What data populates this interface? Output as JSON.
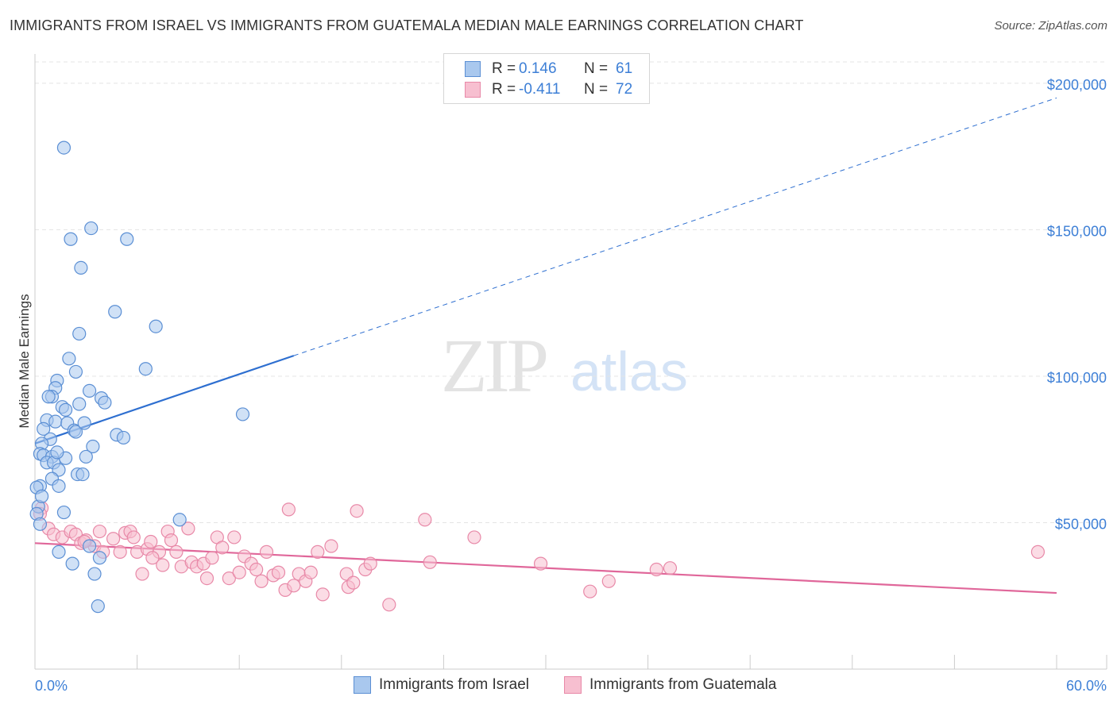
{
  "title": "IMMIGRANTS FROM ISRAEL VS IMMIGRANTS FROM GUATEMALA MEDIAN MALE EARNINGS CORRELATION CHART",
  "source": "Source: ZipAtlas.com",
  "watermark": {
    "zip": "ZIP",
    "atlas": "atlas"
  },
  "legend": {
    "rows": [
      {
        "r_label": "R =",
        "r_value": "0.146",
        "n_label": "N =",
        "n_value": "61"
      },
      {
        "r_label": "R =",
        "r_value": "-0.411",
        "n_label": "N =",
        "n_value": "72"
      }
    ]
  },
  "colors": {
    "israel_fill": "#a9c8ee",
    "israel_stroke": "#5b8fd4",
    "israel_line": "#2e6fd0",
    "guatemala_fill": "#f7bfd0",
    "guatemala_stroke": "#e889a8",
    "guatemala_line": "#e0679a",
    "tick": "#3d7fd6",
    "grid": "#e4e4e4"
  },
  "chart_data": {
    "type": "scatter",
    "title": "IMMIGRANTS FROM ISRAEL VS IMMIGRANTS FROM GUATEMALA MEDIAN MALE EARNINGS CORRELATION CHART",
    "xlabel": "",
    "ylabel": "Median Male Earnings",
    "xlim": [
      0,
      60
    ],
    "ylim": [
      0,
      210000
    ],
    "x_tick_labels": [
      "0.0%",
      "60.0%"
    ],
    "y_ticks": [
      {
        "value": 50000,
        "label": "$50,000"
      },
      {
        "value": 100000,
        "label": "$100,000"
      },
      {
        "value": 150000,
        "label": "$150,000"
      },
      {
        "value": 200000,
        "label": "$200,000"
      }
    ],
    "series": [
      {
        "name": "Immigrants from Israel",
        "r": 0.146,
        "n": 61,
        "trend": {
          "x_start": 0,
          "y_start": 77000,
          "x_solid_end": 15.2,
          "y_solid_end": 107000,
          "x_end": 60,
          "y_end": 195000
        },
        "points": [
          [
            1.7,
            178000
          ],
          [
            3.3,
            150500
          ],
          [
            2.1,
            146800
          ],
          [
            5.4,
            146800
          ],
          [
            2.7,
            137000
          ],
          [
            4.7,
            122000
          ],
          [
            7.1,
            117000
          ],
          [
            2.6,
            114500
          ],
          [
            2.0,
            106000
          ],
          [
            2.4,
            101500
          ],
          [
            6.5,
            102500
          ],
          [
            1.3,
            98500
          ],
          [
            1.2,
            96000
          ],
          [
            3.2,
            95000
          ],
          [
            1.0,
            93000
          ],
          [
            0.8,
            93000
          ],
          [
            3.9,
            92500
          ],
          [
            4.1,
            91000
          ],
          [
            2.6,
            90500
          ],
          [
            1.6,
            89500
          ],
          [
            1.8,
            88500
          ],
          [
            12.2,
            87000
          ],
          [
            0.7,
            85000
          ],
          [
            1.2,
            84500
          ],
          [
            1.9,
            84000
          ],
          [
            0.5,
            82000
          ],
          [
            2.3,
            81500
          ],
          [
            2.4,
            81000
          ],
          [
            4.8,
            80000
          ],
          [
            5.2,
            79000
          ],
          [
            0.9,
            78500
          ],
          [
            0.4,
            77000
          ],
          [
            3.4,
            76000
          ],
          [
            0.3,
            73500
          ],
          [
            0.5,
            73000
          ],
          [
            1.0,
            72500
          ],
          [
            3.0,
            72500
          ],
          [
            1.8,
            72000
          ],
          [
            0.7,
            70500
          ],
          [
            1.1,
            70500
          ],
          [
            1.4,
            68000
          ],
          [
            2.5,
            66500
          ],
          [
            2.8,
            66500
          ],
          [
            1.0,
            65000
          ],
          [
            0.3,
            62500
          ],
          [
            1.4,
            62500
          ],
          [
            0.1,
            62000
          ],
          [
            0.2,
            55500
          ],
          [
            1.7,
            53500
          ],
          [
            0.1,
            53000
          ],
          [
            8.5,
            51000
          ],
          [
            0.3,
            49500
          ],
          [
            3.2,
            42000
          ],
          [
            1.4,
            40000
          ],
          [
            2.2,
            36000
          ],
          [
            3.8,
            38000
          ],
          [
            3.5,
            32500
          ],
          [
            3.7,
            21500
          ],
          [
            0.4,
            59000
          ],
          [
            1.3,
            74000
          ],
          [
            2.9,
            84000
          ]
        ]
      },
      {
        "name": "Immigrants from Guatemala",
        "r": -0.411,
        "n": 72,
        "trend": {
          "x_start": 0,
          "y_start": 43000,
          "x_end": 60,
          "y_end": 26000
        },
        "points": [
          [
            0.4,
            55000
          ],
          [
            0.3,
            53000
          ],
          [
            0.8,
            48000
          ],
          [
            1.1,
            46000
          ],
          [
            1.6,
            45000
          ],
          [
            2.1,
            47000
          ],
          [
            2.4,
            46000
          ],
          [
            2.7,
            43000
          ],
          [
            3.0,
            44000
          ],
          [
            3.5,
            42000
          ],
          [
            3.8,
            47000
          ],
          [
            4.0,
            40000
          ],
          [
            4.6,
            44500
          ],
          [
            5.0,
            40000
          ],
          [
            5.3,
            46500
          ],
          [
            5.6,
            47000
          ],
          [
            5.8,
            45000
          ],
          [
            6.0,
            40000
          ],
          [
            6.3,
            32500
          ],
          [
            6.6,
            41000
          ],
          [
            6.8,
            43500
          ],
          [
            7.3,
            40000
          ],
          [
            7.5,
            35500
          ],
          [
            7.8,
            47000
          ],
          [
            8.0,
            44000
          ],
          [
            8.3,
            40000
          ],
          [
            8.6,
            35000
          ],
          [
            9.0,
            48000
          ],
          [
            9.2,
            36500
          ],
          [
            9.5,
            35000
          ],
          [
            9.9,
            36000
          ],
          [
            10.1,
            31000
          ],
          [
            10.4,
            38000
          ],
          [
            10.7,
            45000
          ],
          [
            11.0,
            41500
          ],
          [
            11.4,
            31000
          ],
          [
            11.7,
            45000
          ],
          [
            12.0,
            33000
          ],
          [
            12.3,
            38500
          ],
          [
            12.7,
            36000
          ],
          [
            13.0,
            34000
          ],
          [
            13.3,
            30000
          ],
          [
            13.6,
            40000
          ],
          [
            14.0,
            32000
          ],
          [
            14.3,
            33000
          ],
          [
            14.7,
            27000
          ],
          [
            14.9,
            54500
          ],
          [
            15.2,
            28500
          ],
          [
            15.5,
            32500
          ],
          [
            15.9,
            30000
          ],
          [
            16.2,
            33000
          ],
          [
            16.6,
            40000
          ],
          [
            16.9,
            25500
          ],
          [
            17.4,
            42000
          ],
          [
            18.3,
            32500
          ],
          [
            18.4,
            28000
          ],
          [
            18.7,
            29500
          ],
          [
            18.9,
            54000
          ],
          [
            19.4,
            34000
          ],
          [
            19.7,
            36000
          ],
          [
            20.8,
            22000
          ],
          [
            22.9,
            51000
          ],
          [
            23.2,
            36500
          ],
          [
            25.8,
            45000
          ],
          [
            29.7,
            36000
          ],
          [
            32.6,
            26500
          ],
          [
            33.7,
            30000
          ],
          [
            36.5,
            34000
          ],
          [
            37.3,
            34500
          ],
          [
            58.9,
            40000
          ],
          [
            2.9,
            43500
          ],
          [
            6.9,
            38000
          ]
        ]
      }
    ],
    "legend": [
      "Immigrants from Israel",
      "Immigrants from Guatemala"
    ]
  }
}
